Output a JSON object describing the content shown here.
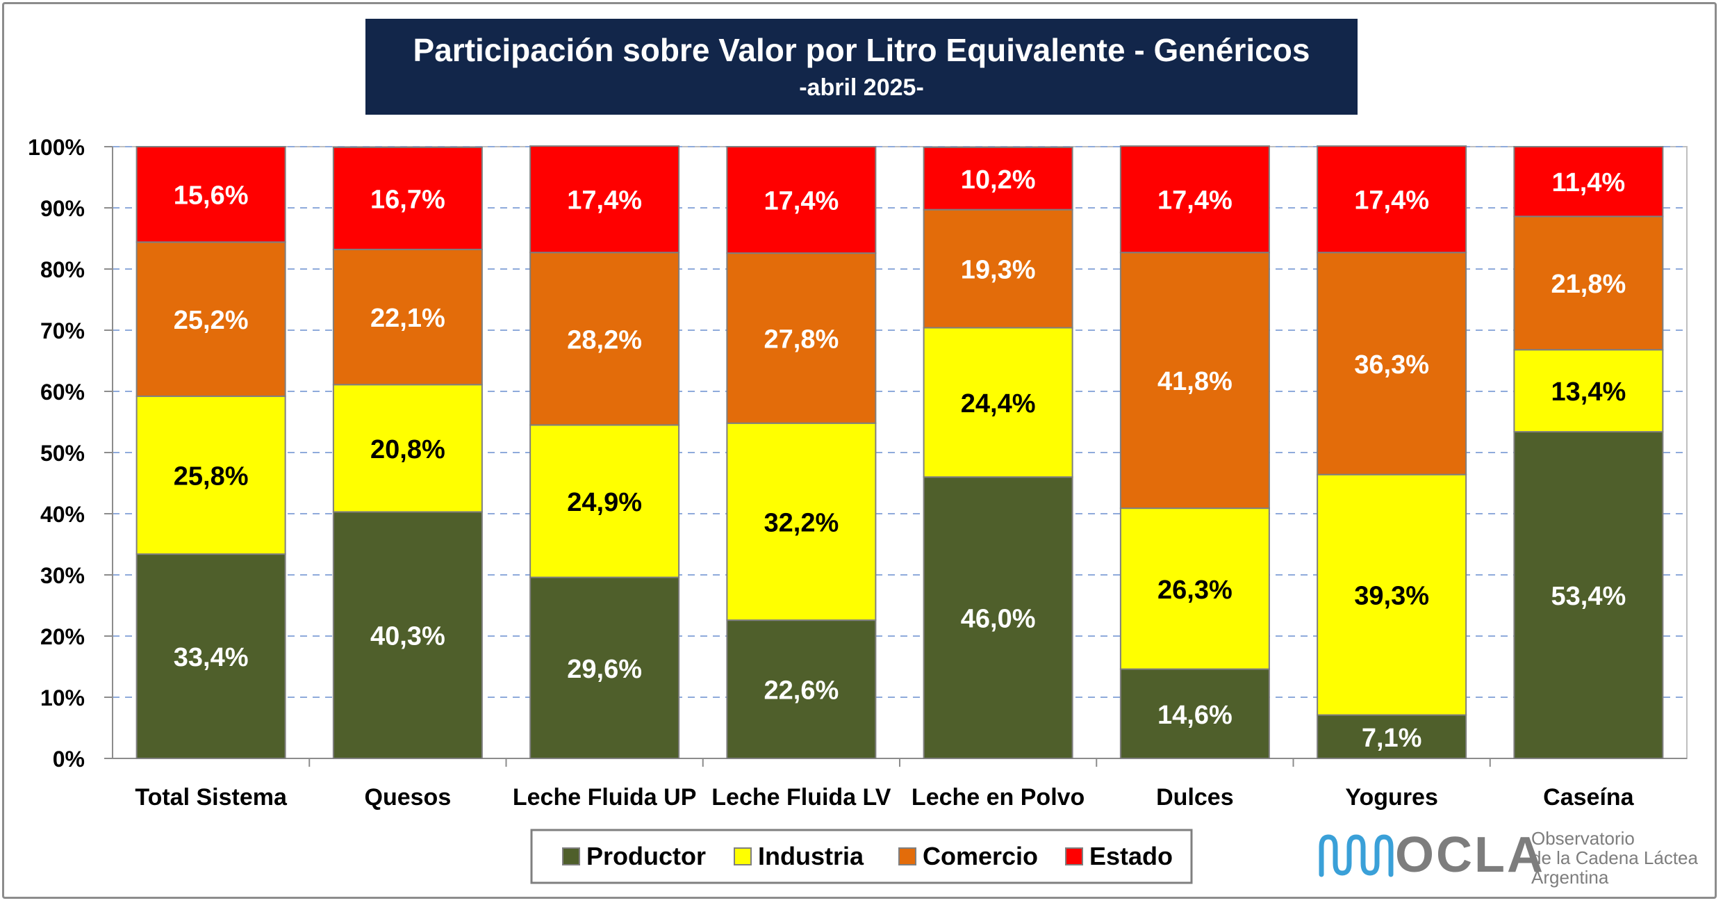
{
  "chart_data": {
    "type": "bar",
    "stacked": true,
    "percent": true,
    "title": "Participación sobre Valor por Litro Equivalente - Genéricos",
    "subtitle": "-abril 2025-",
    "categories": [
      "Total Sistema",
      "Quesos",
      "Leche Fluida UP",
      "Leche Fluida LV",
      "Leche en Polvo",
      "Dulces",
      "Yogures",
      "Caseína"
    ],
    "ylim": [
      0,
      100
    ],
    "yticks": [
      "0%",
      "10%",
      "20%",
      "30%",
      "40%",
      "50%",
      "60%",
      "70%",
      "80%",
      "90%",
      "100%"
    ],
    "grid": true,
    "legend_position": "bottom",
    "series": [
      {
        "name": "Productor",
        "color": "#4f5f2b",
        "label_color": "#ffffff",
        "values": [
          33.4,
          40.3,
          29.6,
          22.6,
          46.0,
          14.6,
          7.1,
          53.4
        ],
        "labels": [
          "33,4%",
          "40,3%",
          "29,6%",
          "22,6%",
          "46,0%",
          "14,6%",
          "7,1%",
          "53,4%"
        ]
      },
      {
        "name": "Industria",
        "color": "#ffff00",
        "label_color": "#000000",
        "values": [
          25.8,
          20.8,
          24.9,
          32.2,
          24.4,
          26.3,
          39.3,
          13.4
        ],
        "labels": [
          "25,8%",
          "20,8%",
          "24,9%",
          "32,2%",
          "24,4%",
          "26,3%",
          "39,3%",
          "13,4%"
        ]
      },
      {
        "name": "Comercio",
        "color": "#e36c0a",
        "label_color": "#ffffff",
        "values": [
          25.2,
          22.1,
          28.2,
          27.8,
          19.3,
          41.8,
          36.3,
          21.8
        ],
        "labels": [
          "25,2%",
          "22,1%",
          "28,2%",
          "27,8%",
          "19,3%",
          "41,8%",
          "36,3%",
          "21,8%"
        ]
      },
      {
        "name": "Estado",
        "color": "#ff0000",
        "label_color": "#ffffff",
        "values": [
          15.6,
          16.7,
          17.4,
          17.4,
          10.2,
          17.4,
          17.4,
          11.4
        ],
        "labels": [
          "15,6%",
          "16,7%",
          "17,4%",
          "17,4%",
          "10,2%",
          "17,4%",
          "17,4%",
          "11,4%"
        ]
      }
    ]
  },
  "logo": {
    "name": "OCLA",
    "lines": [
      "Observatorio",
      "de la Cadena Láctea",
      "Argentina"
    ]
  }
}
